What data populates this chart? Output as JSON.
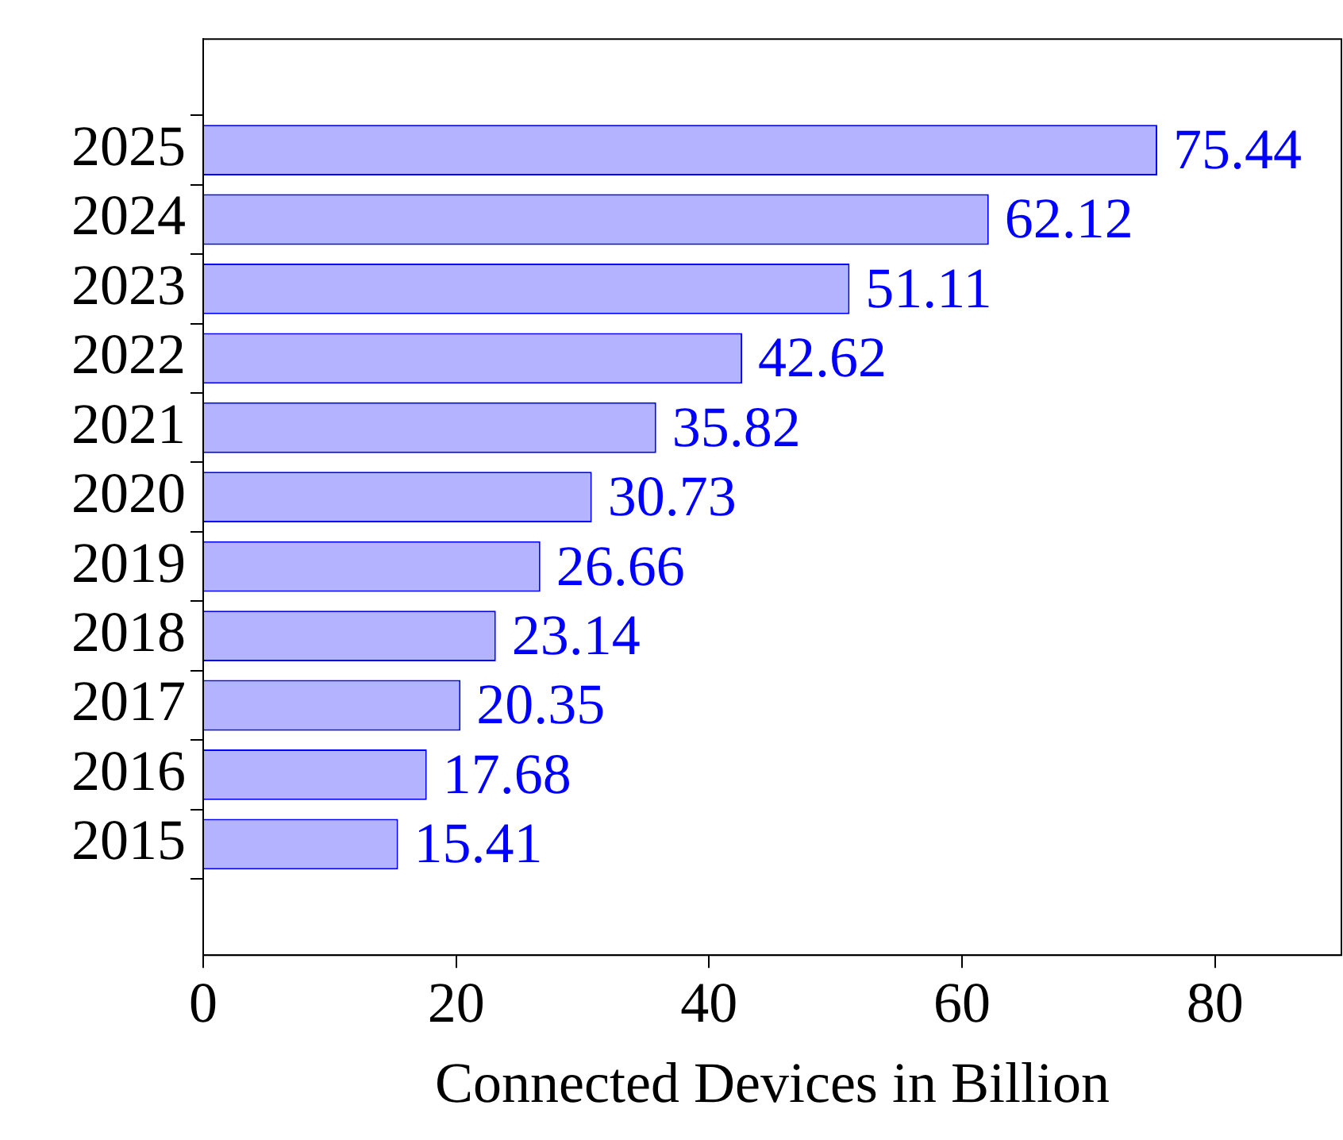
{
  "chart_data": {
    "type": "bar",
    "orientation": "horizontal",
    "xlabel": "Connected Devices in Billion",
    "categories": [
      "2025",
      "2024",
      "2023",
      "2022",
      "2021",
      "2020",
      "2019",
      "2018",
      "2017",
      "2016",
      "2015"
    ],
    "values": [
      75.44,
      62.12,
      51.11,
      42.62,
      35.82,
      30.73,
      26.66,
      23.14,
      20.35,
      17.68,
      15.41
    ],
    "color": "#b3b3ff",
    "data_labels": true,
    "xlim": [
      0,
      90
    ],
    "xticks": [
      0,
      20,
      40,
      60,
      80
    ],
    "grid": false,
    "legend": false
  }
}
